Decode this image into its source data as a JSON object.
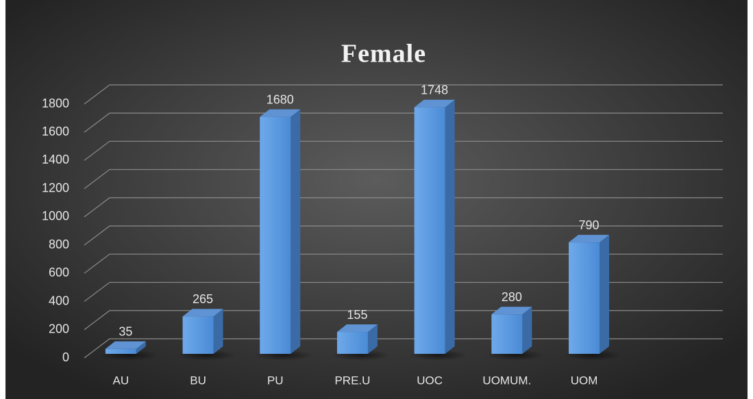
{
  "chart_data": {
    "type": "bar",
    "title": "Female",
    "categories": [
      "AU",
      "BU",
      "PU",
      "PRE.U",
      "UOC",
      "UOMUM.",
      "UOM"
    ],
    "values": [
      35,
      265,
      1680,
      155,
      1748,
      280,
      790
    ],
    "color": "#5b9be0",
    "ylim": [
      0,
      1800
    ],
    "yticks": [
      0,
      200,
      400,
      600,
      800,
      1000,
      1200,
      1400,
      1600,
      1800
    ],
    "grid": true
  }
}
